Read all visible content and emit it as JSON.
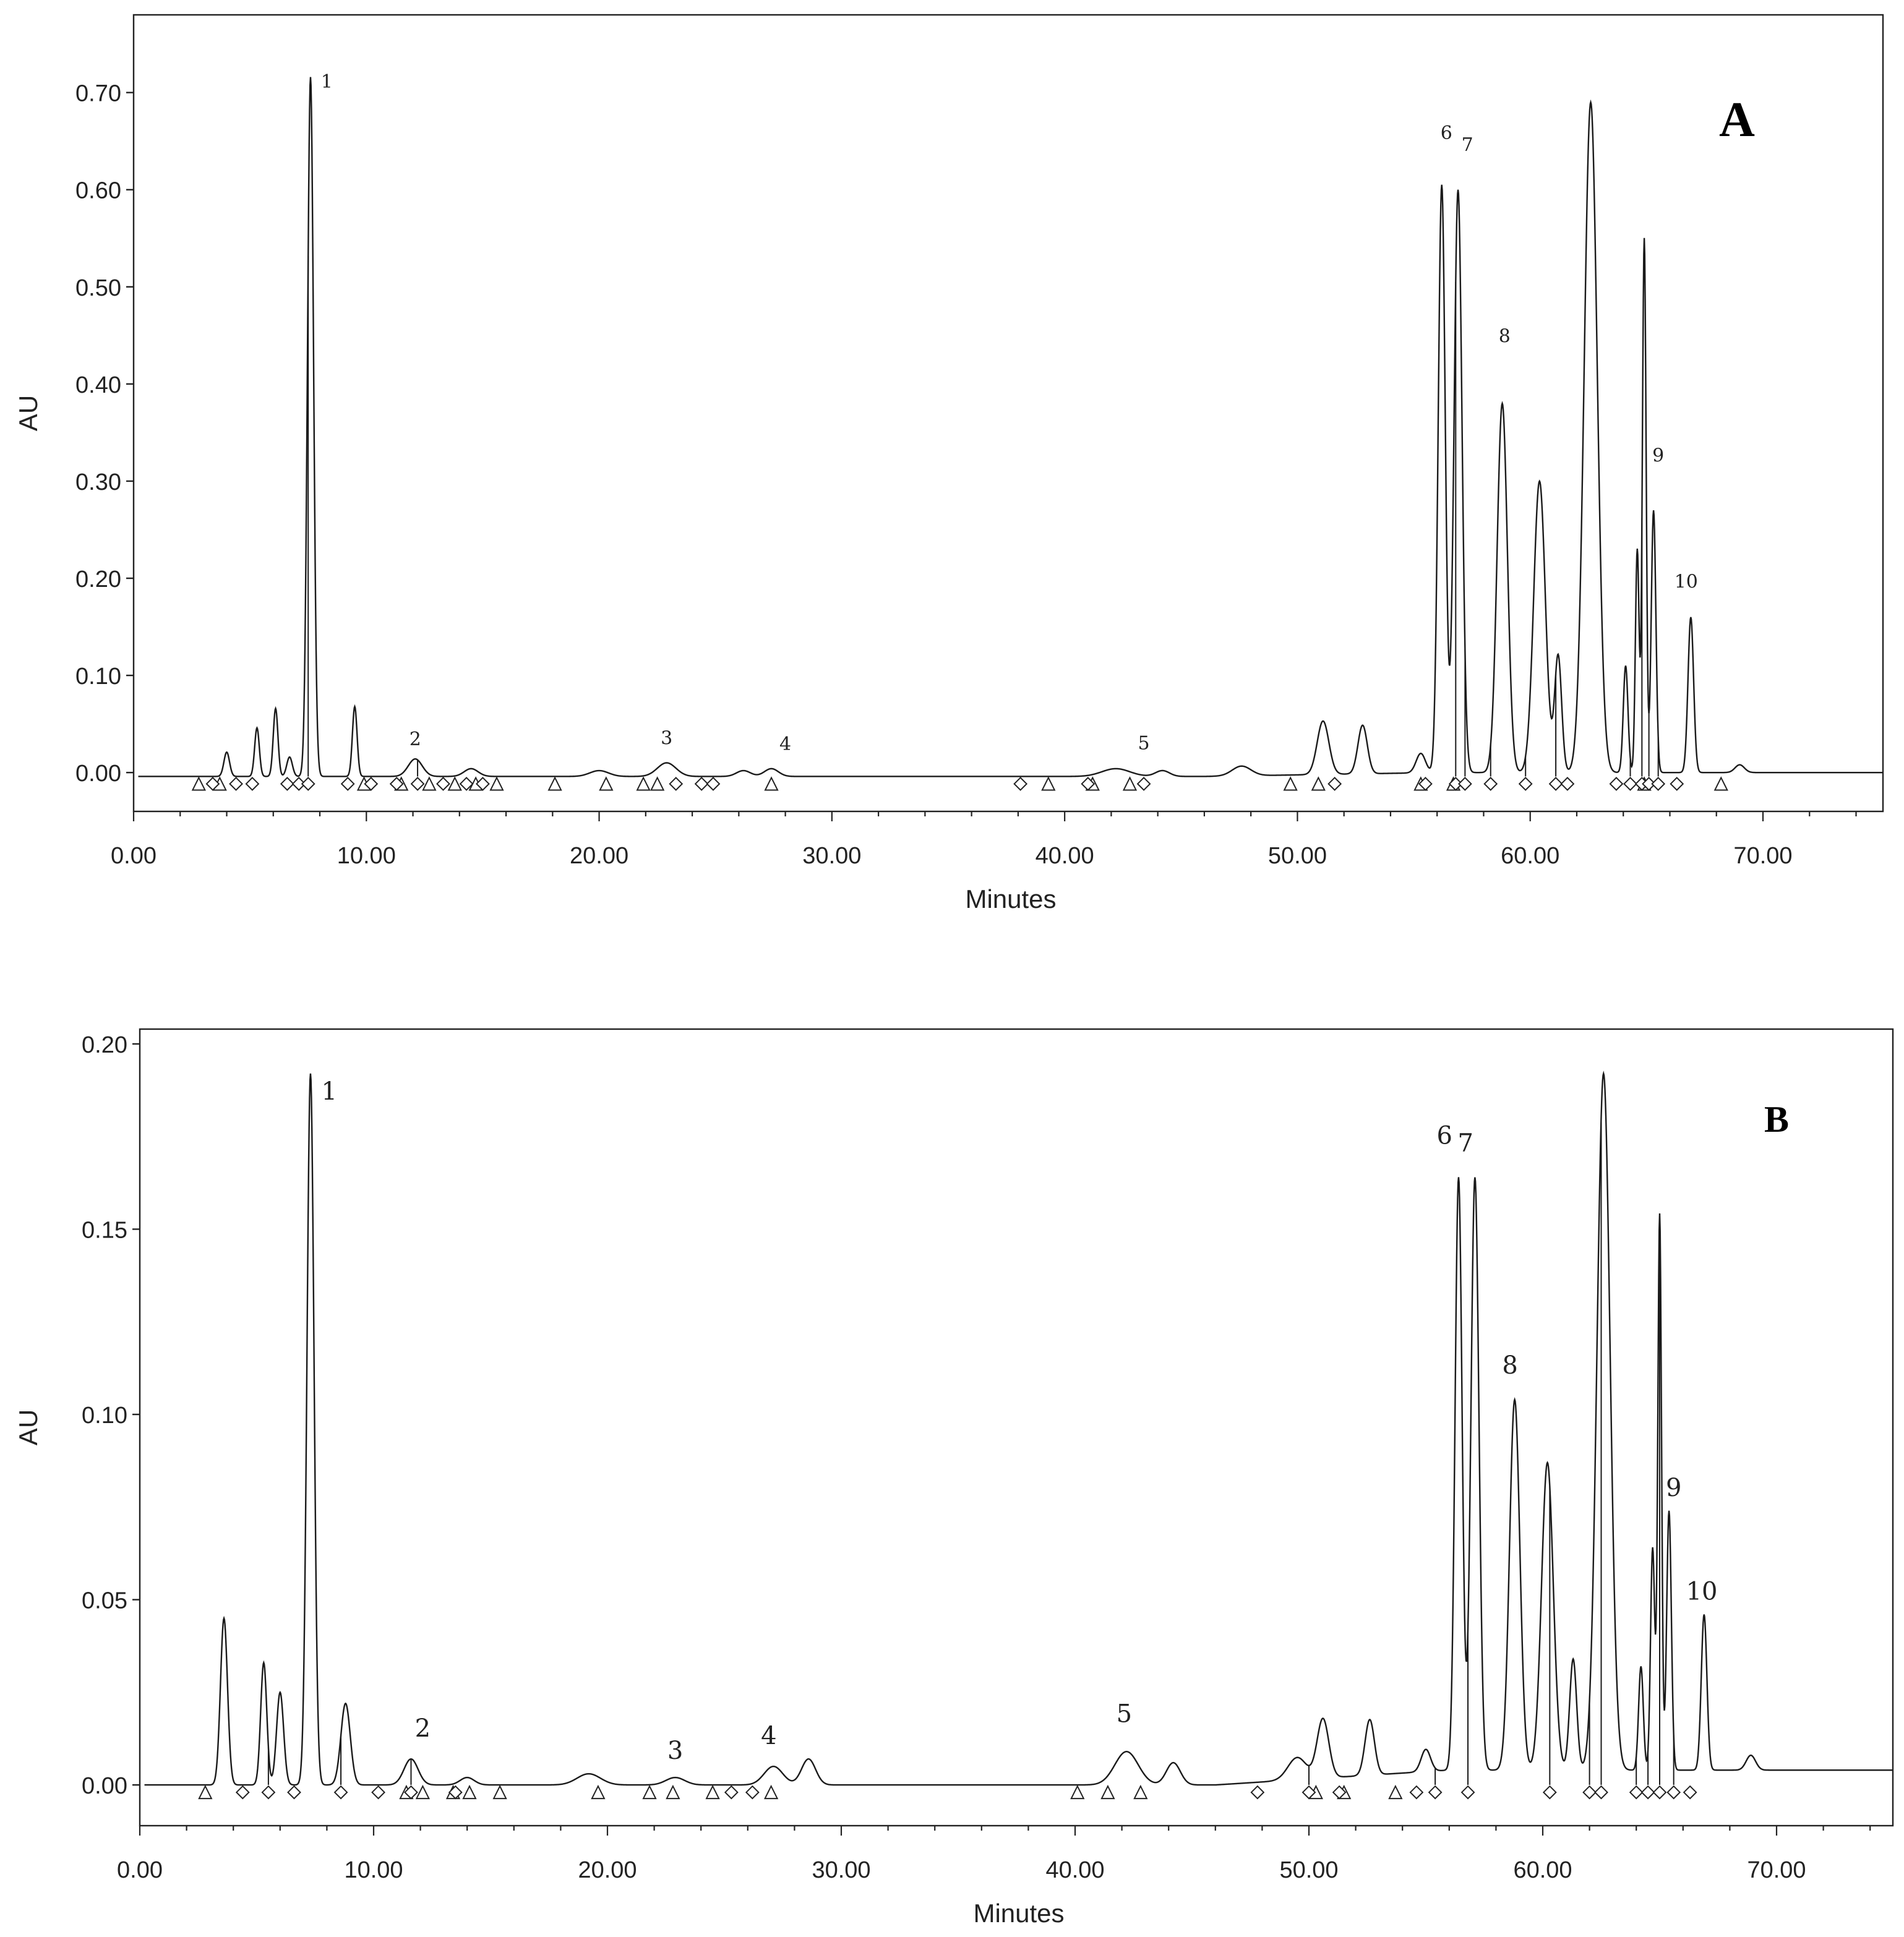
{
  "chart_data": [
    {
      "type": "line",
      "panel_label": "A",
      "xlabel": "Minutes",
      "ylabel": "AU",
      "xlim": [
        0,
        76.5
      ],
      "ylim": [
        -0.04,
        0.78
      ],
      "x_ticks": [
        0,
        10,
        20,
        30,
        40,
        50,
        60,
        70
      ],
      "x_tick_labels": [
        "0.00",
        "10.00",
        "20.00",
        "30.00",
        "40.00",
        "50.00",
        "60.00",
        "70.00"
      ],
      "y_ticks": [
        0,
        0.1,
        0.2,
        0.3,
        0.4,
        0.5,
        0.6,
        0.7
      ],
      "y_tick_labels": [
        "0.00",
        "0.10",
        "0.20",
        "0.30",
        "0.40",
        "0.50",
        "0.60",
        "0.70"
      ],
      "grid": false,
      "baseline": -0.004,
      "peaks": [
        {
          "rt": 4.0,
          "h": 0.025,
          "w": 0.12
        },
        {
          "rt": 5.3,
          "h": 0.05,
          "w": 0.1
        },
        {
          "rt": 6.1,
          "h": 0.07,
          "w": 0.1
        },
        {
          "rt": 6.7,
          "h": 0.02,
          "w": 0.12
        },
        {
          "rt": 7.6,
          "h": 0.72,
          "w": 0.13,
          "label": "1"
        },
        {
          "rt": 9.5,
          "h": 0.072,
          "w": 0.1
        },
        {
          "rt": 12.1,
          "h": 0.018,
          "w": 0.3,
          "label": "2"
        },
        {
          "rt": 14.5,
          "h": 0.008,
          "w": 0.3
        },
        {
          "rt": 20.0,
          "h": 0.006,
          "w": 0.4
        },
        {
          "rt": 22.9,
          "h": 0.014,
          "w": 0.4,
          "label": "3"
        },
        {
          "rt": 26.2,
          "h": 0.006,
          "w": 0.3
        },
        {
          "rt": 27.4,
          "h": 0.008,
          "w": 0.3,
          "label": "4"
        },
        {
          "rt": 42.2,
          "h": 0.008,
          "w": 0.6,
          "label": "5"
        },
        {
          "rt": 44.2,
          "h": 0.006,
          "w": 0.3
        },
        {
          "rt": 47.6,
          "h": 0.01,
          "w": 0.4
        },
        {
          "rt": 51.1,
          "h": 0.055,
          "w": 0.25
        },
        {
          "rt": 52.8,
          "h": 0.05,
          "w": 0.2
        },
        {
          "rt": 55.3,
          "h": 0.02,
          "w": 0.2
        },
        {
          "rt": 56.2,
          "h": 0.605,
          "w": 0.15,
          "label": "6"
        },
        {
          "rt": 56.9,
          "h": 0.6,
          "w": 0.17,
          "label": "7"
        },
        {
          "rt": 58.8,
          "h": 0.38,
          "w": 0.22,
          "label": "8"
        },
        {
          "rt": 60.4,
          "h": 0.3,
          "w": 0.25
        },
        {
          "rt": 61.2,
          "h": 0.12,
          "w": 0.15
        },
        {
          "rt": 62.6,
          "h": 0.69,
          "w": 0.28
        },
        {
          "rt": 64.1,
          "h": 0.11,
          "w": 0.1
        },
        {
          "rt": 64.6,
          "h": 0.23,
          "w": 0.08
        },
        {
          "rt": 64.9,
          "h": 0.55,
          "w": 0.08
        },
        {
          "rt": 65.3,
          "h": 0.27,
          "w": 0.1,
          "label": "9"
        },
        {
          "rt": 66.9,
          "h": 0.16,
          "w": 0.12,
          "label": "10"
        },
        {
          "rt": 69.0,
          "h": 0.008,
          "w": 0.2
        }
      ],
      "peak_labels": [
        {
          "label": "1",
          "x": 8.3,
          "y": 0.705
        },
        {
          "label": "2",
          "x": 12.1,
          "y": 0.028
        },
        {
          "label": "3",
          "x": 22.9,
          "y": 0.029
        },
        {
          "label": "4",
          "x": 28.0,
          "y": 0.023
        },
        {
          "label": "5",
          "x": 43.4,
          "y": 0.024
        },
        {
          "label": "6",
          "x": 56.4,
          "y": 0.652
        },
        {
          "label": "7",
          "x": 57.3,
          "y": 0.64
        },
        {
          "label": "8",
          "x": 58.9,
          "y": 0.443
        },
        {
          "label": "9",
          "x": 65.5,
          "y": 0.32
        },
        {
          "label": "10",
          "x": 66.7,
          "y": 0.19
        }
      ],
      "triangle_markers": [
        2.8,
        3.7,
        9.9,
        11.5,
        12.7,
        13.8,
        14.7,
        15.6,
        18.1,
        20.3,
        21.9,
        22.5,
        27.4,
        39.3,
        41.2,
        42.8,
        49.7,
        50.9,
        55.3,
        56.7,
        64.9,
        68.2
      ],
      "diamond_markers": [
        3.4,
        4.4,
        5.1,
        6.6,
        7.1,
        7.5,
        9.2,
        10.2,
        11.3,
        12.2,
        13.3,
        14.3,
        15.0,
        23.3,
        24.4,
        24.9,
        38.1,
        41.0,
        43.4,
        51.6,
        55.5,
        56.8,
        57.2,
        58.3,
        59.8,
        61.1,
        61.6,
        63.7,
        64.3,
        64.8,
        65.1,
        65.5,
        66.3
      ]
    },
    {
      "type": "line",
      "panel_label": "B",
      "xlabel": "Minutes",
      "ylabel": "AU",
      "xlim": [
        0,
        77
      ],
      "ylim": [
        -0.011,
        0.204
      ],
      "x_ticks": [
        0,
        10,
        20,
        30,
        40,
        50,
        60,
        70
      ],
      "x_tick_labels": [
        "0.00",
        "10.00",
        "20.00",
        "30.00",
        "40.00",
        "50.00",
        "60.00",
        "70.00"
      ],
      "y_ticks": [
        0,
        0.05,
        0.1,
        0.15,
        0.2
      ],
      "y_tick_labels": [
        "0.00",
        "0.05",
        "0.10",
        "0.15",
        "0.20"
      ],
      "grid": false,
      "baseline": 0.0,
      "peaks": [
        {
          "rt": 3.6,
          "h": 0.045,
          "w": 0.15
        },
        {
          "rt": 5.3,
          "h": 0.033,
          "w": 0.13
        },
        {
          "rt": 6.0,
          "h": 0.025,
          "w": 0.15
        },
        {
          "rt": 7.3,
          "h": 0.192,
          "w": 0.15,
          "label": "1"
        },
        {
          "rt": 8.8,
          "h": 0.022,
          "w": 0.2
        },
        {
          "rt": 11.6,
          "h": 0.007,
          "w": 0.3,
          "label": "2"
        },
        {
          "rt": 14.0,
          "h": 0.002,
          "w": 0.3
        },
        {
          "rt": 19.2,
          "h": 0.003,
          "w": 0.5
        },
        {
          "rt": 22.9,
          "h": 0.002,
          "w": 0.4,
          "label": "3"
        },
        {
          "rt": 27.1,
          "h": 0.005,
          "w": 0.4,
          "label": "4"
        },
        {
          "rt": 28.6,
          "h": 0.007,
          "w": 0.3
        },
        {
          "rt": 42.2,
          "h": 0.009,
          "w": 0.5,
          "label": "5"
        },
        {
          "rt": 44.2,
          "h": 0.006,
          "w": 0.3
        },
        {
          "rt": 49.5,
          "h": 0.006,
          "w": 0.4
        },
        {
          "rt": 50.6,
          "h": 0.016,
          "w": 0.25
        },
        {
          "rt": 52.6,
          "h": 0.015,
          "w": 0.2
        },
        {
          "rt": 55.0,
          "h": 0.006,
          "w": 0.2
        },
        {
          "rt": 56.4,
          "h": 0.16,
          "w": 0.15,
          "label": "6"
        },
        {
          "rt": 57.1,
          "h": 0.16,
          "w": 0.17,
          "label": "7"
        },
        {
          "rt": 58.8,
          "h": 0.1,
          "w": 0.22,
          "label": "8"
        },
        {
          "rt": 60.2,
          "h": 0.083,
          "w": 0.25
        },
        {
          "rt": 61.3,
          "h": 0.03,
          "w": 0.15
        },
        {
          "rt": 62.6,
          "h": 0.188,
          "w": 0.28
        },
        {
          "rt": 64.2,
          "h": 0.028,
          "w": 0.1
        },
        {
          "rt": 64.7,
          "h": 0.06,
          "w": 0.09
        },
        {
          "rt": 65.0,
          "h": 0.15,
          "w": 0.08
        },
        {
          "rt": 65.4,
          "h": 0.07,
          "w": 0.1,
          "label": "9"
        },
        {
          "rt": 66.9,
          "h": 0.042,
          "w": 0.12,
          "label": "10"
        },
        {
          "rt": 68.9,
          "h": 0.004,
          "w": 0.2
        }
      ],
      "peak_labels": [
        {
          "label": "1",
          "x": 8.1,
          "y": 0.185
        },
        {
          "label": "2",
          "x": 12.1,
          "y": 0.013
        },
        {
          "label": "3",
          "x": 22.9,
          "y": 0.007
        },
        {
          "label": "4",
          "x": 26.9,
          "y": 0.011
        },
        {
          "label": "5",
          "x": 42.1,
          "y": 0.017
        },
        {
          "label": "6",
          "x": 55.8,
          "y": 0.173
        },
        {
          "label": "7",
          "x": 56.7,
          "y": 0.171
        },
        {
          "label": "8",
          "x": 58.6,
          "y": 0.111
        },
        {
          "label": "9",
          "x": 65.6,
          "y": 0.078
        },
        {
          "label": "10",
          "x": 66.8,
          "y": 0.05
        }
      ],
      "triangle_markers": [
        2.8,
        11.4,
        12.1,
        13.4,
        14.1,
        15.4,
        19.6,
        21.8,
        22.8,
        24.5,
        27.0,
        40.1,
        41.4,
        42.8,
        50.3,
        51.5,
        53.7
      ],
      "diamond_markers": [
        4.4,
        5.5,
        6.6,
        8.6,
        10.2,
        11.6,
        13.5,
        25.3,
        26.2,
        47.8,
        50.0,
        51.3,
        54.6,
        55.4,
        56.8,
        60.3,
        62.0,
        62.5,
        64.0,
        64.5,
        65.0,
        65.6,
        66.3
      ]
    }
  ]
}
